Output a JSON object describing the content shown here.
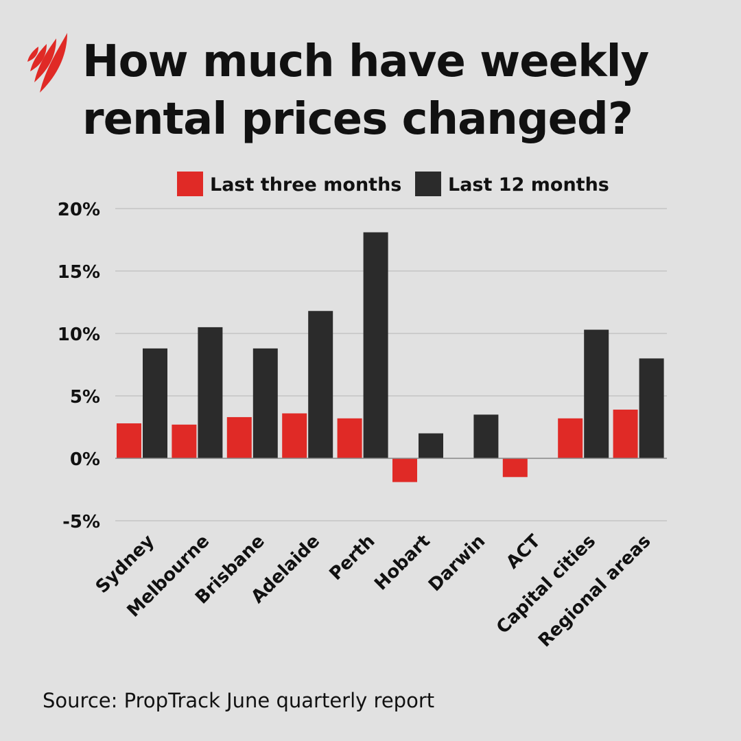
{
  "logo": {
    "brand": "SBS",
    "color": "#e02a26"
  },
  "title": "How much have weekly rental prices changed?",
  "source": "Source: PropTrack June quarterly report",
  "chart_data": {
    "type": "bar",
    "title": "How much have weekly rental prices changed?",
    "categories": [
      "Sydney",
      "Melbourne",
      "Brisbane",
      "Adelaide",
      "Perth",
      "Hobart",
      "Darwin",
      "ACT",
      "Capital cities",
      "Regional areas"
    ],
    "series": [
      {
        "name": "Last three months",
        "color": "#e02a26",
        "values": [
          2.8,
          2.7,
          3.3,
          3.6,
          3.2,
          -1.9,
          0,
          -1.5,
          3.2,
          3.9
        ]
      },
      {
        "name": "Last 12 months",
        "color": "#2b2b2b",
        "values": [
          8.8,
          10.5,
          8.8,
          11.8,
          18.1,
          2.0,
          3.5,
          0,
          10.3,
          8.0
        ]
      }
    ],
    "ylim": [
      -5,
      20
    ],
    "yticks": [
      20,
      15,
      10,
      5,
      0,
      -5
    ],
    "ytick_labels": [
      "20%",
      "15%",
      "10%",
      "5%",
      "0%",
      "-5%"
    ],
    "grid": true,
    "legend": "top-center",
    "xlabel": "",
    "ylabel": ""
  }
}
